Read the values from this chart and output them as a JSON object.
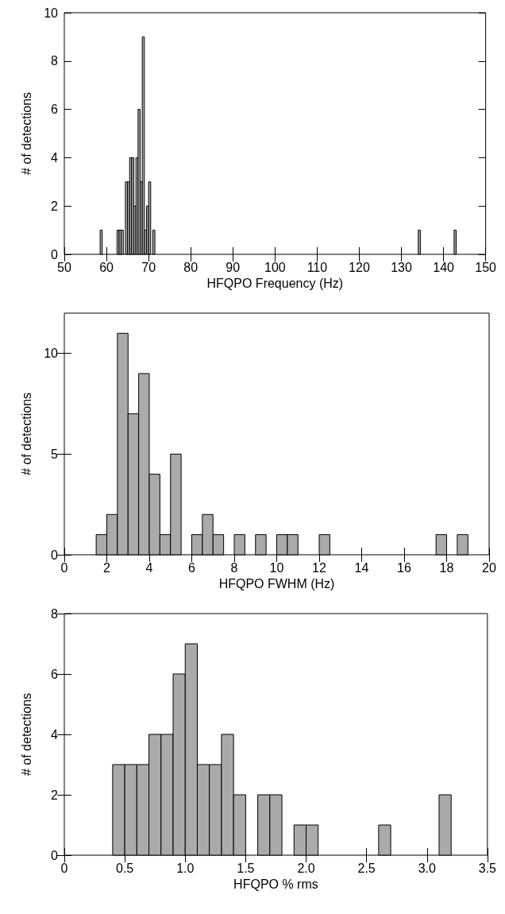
{
  "chart_data": [
    {
      "type": "histogram",
      "xlabel": "HFQPO Frequency (Hz)",
      "ylabel": "# of detections",
      "color": "#aaaaaa",
      "xlim": [
        50,
        150
      ],
      "xticks": [
        50,
        60,
        70,
        80,
        90,
        100,
        110,
        120,
        130,
        140,
        150
      ],
      "ylim": [
        0,
        10
      ],
      "yticks": [
        0,
        2,
        4,
        6,
        8,
        10
      ],
      "bins": [
        58.5,
        59,
        59.5,
        60,
        60.5,
        61,
        61.5,
        62,
        62.5,
        63,
        63.5,
        64,
        64.5,
        65,
        65.5,
        66,
        66.5,
        67,
        67.5,
        68,
        68.5,
        69,
        69.5,
        70,
        70.5,
        71,
        71.5,
        72,
        72.5,
        73,
        73.5,
        74,
        74.5,
        75,
        75.5,
        76,
        76.5,
        77,
        77.5,
        78,
        78.5,
        79,
        79.5,
        80,
        80.5,
        81,
        81.5,
        82,
        82.5,
        83,
        83.5,
        84,
        84.5,
        85,
        85.5,
        86,
        86.5,
        87,
        87.5,
        88,
        88.5,
        89,
        89.5,
        90,
        90.5,
        91,
        91.5,
        92,
        92.5,
        93,
        93.5,
        94,
        94.5,
        95,
        95.5,
        96,
        96.5,
        97,
        97.5,
        98,
        98.5,
        99,
        99.5,
        100,
        100.5,
        101,
        101.5,
        102,
        102.5,
        103,
        103.5,
        104,
        104.5,
        105,
        105.5,
        106,
        106.5,
        107,
        107.5,
        108,
        108.5,
        109,
        109.5,
        110,
        110.5,
        111,
        111.5,
        112,
        112.5,
        113,
        113.5,
        114,
        114.5,
        115,
        115.5,
        116,
        116.5,
        117,
        117.5,
        118,
        118.5,
        119,
        119.5,
        120,
        120.5,
        121,
        121.5,
        122,
        122.5,
        123,
        123.5,
        124,
        124.5,
        125,
        125.5,
        126,
        126.5,
        127,
        127.5,
        128,
        128.5,
        129,
        129.5,
        130,
        130.5,
        131,
        131.5,
        132,
        132.5,
        133,
        133.5,
        134,
        134.5,
        135,
        135.5,
        136,
        136.5,
        137,
        137.5,
        138,
        138.5,
        139,
        139.5,
        140,
        140.5,
        141,
        141.5,
        142,
        142.5,
        143
      ],
      "values": [
        1,
        0,
        0,
        0,
        0,
        0,
        0,
        0,
        1,
        1,
        1,
        0,
        3,
        3,
        4,
        4,
        2,
        4,
        6,
        3,
        9,
        1,
        2,
        3,
        0,
        1,
        0,
        0,
        0,
        0,
        0,
        0,
        0,
        0,
        0,
        0,
        0,
        0,
        0,
        0,
        0,
        0,
        0,
        0,
        0,
        0,
        0,
        0,
        0,
        0,
        0,
        0,
        0,
        0,
        0,
        0,
        0,
        0,
        0,
        0,
        0,
        0,
        0,
        0,
        0,
        0,
        0,
        0,
        0,
        0,
        0,
        0,
        0,
        0,
        0,
        0,
        0,
        0,
        0,
        0,
        0,
        0,
        0,
        0,
        0,
        0,
        0,
        0,
        0,
        0,
        0,
        0,
        0,
        0,
        0,
        0,
        0,
        0,
        0,
        0,
        0,
        0,
        0,
        0,
        0,
        0,
        0,
        0,
        0,
        0,
        0,
        0,
        0,
        0,
        0,
        0,
        0,
        0,
        0,
        0,
        0,
        0,
        0,
        0,
        0,
        0,
        0,
        0,
        0,
        0,
        0,
        0,
        0,
        0,
        0,
        0,
        0,
        0,
        0,
        0,
        0,
        0,
        0,
        0,
        0,
        0,
        0,
        0,
        0,
        0,
        0,
        1,
        0,
        0,
        0,
        0,
        0,
        0,
        0,
        0,
        0,
        0,
        0,
        0,
        0,
        0,
        0,
        0,
        1
      ]
    },
    {
      "type": "histogram",
      "xlabel": "HFQPO FWHM (Hz)",
      "ylabel": "# of detections",
      "color": "#aaaaaa",
      "xlim": [
        0,
        20
      ],
      "xticks": [
        0,
        2,
        4,
        6,
        8,
        10,
        12,
        14,
        16,
        18,
        20
      ],
      "ylim": [
        0,
        12
      ],
      "yticks": [
        0,
        5,
        10
      ],
      "bins": [
        1.5,
        2,
        2.5,
        3,
        3.5,
        4,
        4.5,
        5,
        5.5,
        6,
        6.5,
        7,
        7.5,
        8,
        8.5,
        9,
        9.5,
        10,
        10.5,
        11,
        11.5,
        12,
        12.5,
        13,
        13.5,
        14,
        14.5,
        15,
        15.5,
        16,
        16.5,
        17,
        17.5,
        18,
        18.5,
        19
      ],
      "values": [
        1,
        2,
        11,
        7,
        9,
        4,
        1,
        5,
        0,
        1,
        2,
        1,
        0,
        1,
        0,
        1,
        0,
        1,
        1,
        0,
        0,
        1,
        0,
        0,
        0,
        0,
        0,
        0,
        0,
        0,
        0,
        0,
        1,
        0,
        1
      ]
    },
    {
      "type": "histogram",
      "xlabel": "HFQPO % rms",
      "ylabel": "# of detections",
      "color": "#aaaaaa",
      "xlim": [
        0,
        3.5
      ],
      "xticks": [
        0,
        {
          "value": 0.5,
          "label": "0.5"
        },
        {
          "value": 1,
          "label": "1.0"
        },
        {
          "value": 1.5,
          "label": "1.5"
        },
        {
          "value": 2,
          "label": "2.0"
        },
        {
          "value": 2.5,
          "label": "2.5"
        },
        {
          "value": 3,
          "label": "3.0"
        },
        {
          "value": 3.5,
          "label": "3.5"
        }
      ],
      "ylim": [
        0,
        8
      ],
      "yticks": [
        0,
        2,
        4,
        6,
        8
      ],
      "bins": [
        0.4,
        0.5,
        0.6,
        0.7,
        0.8,
        0.9,
        1.0,
        1.1,
        1.2,
        1.3,
        1.4,
        1.5,
        1.6,
        1.7,
        1.8,
        1.9,
        2.0,
        2.1,
        2.2,
        2.3,
        2.4,
        2.5,
        2.6,
        2.7,
        2.8,
        2.9,
        3.0,
        3.1,
        3.2
      ],
      "values": [
        3,
        3,
        3,
        4,
        4,
        6,
        7,
        3,
        3,
        4,
        2,
        0,
        2,
        2,
        0,
        1,
        1,
        0,
        0,
        0,
        0,
        0,
        1,
        0,
        0,
        0,
        0,
        2
      ]
    }
  ]
}
